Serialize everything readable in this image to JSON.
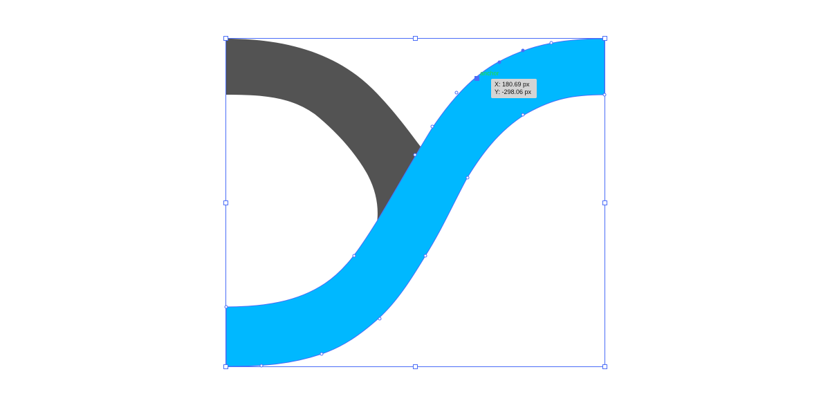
{
  "canvas": {
    "background": "#ffffff"
  },
  "shapes": {
    "dark_arc": {
      "color": "#535353"
    },
    "blue_s_curve": {
      "color": "#00b8ff"
    }
  },
  "selection": {
    "color": "#4a6cf7",
    "handle_icon": "square-handle-icon",
    "anchor_icon": "anchor-point-icon"
  },
  "smart_guide": {
    "label": "anchor",
    "color": "#22dd44"
  },
  "tooltip": {
    "x_label": "X: 180.69 px",
    "y_label": "Y: -298.06 px"
  }
}
